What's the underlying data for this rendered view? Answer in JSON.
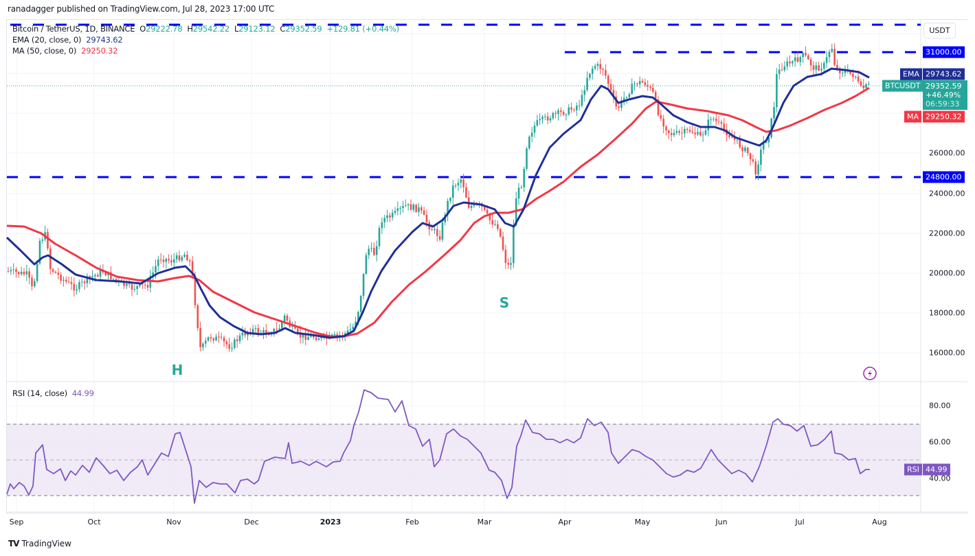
{
  "header": {
    "published": "ranadagger published on TradingView.com, Jul 28, 2023 17:00 UTC"
  },
  "legend": {
    "symbol": "Bitcoin / TetherUS, 1D, BINANCE",
    "open_label": "O",
    "open": "29222.78",
    "high_label": "H",
    "high": "29542.22",
    "low_label": "L",
    "low": "29123.12",
    "close_label": "C",
    "close": "29352.59",
    "change": "+129.81 (+0.44%)",
    "ema_label": "EMA (20, close, 0)",
    "ema_value": "29743.62",
    "ma_label": "MA (50, close, 0)",
    "ma_value": "29250.32",
    "rsi_label": "RSI (14, close)",
    "rsi_value": "44.99"
  },
  "price_axis": {
    "unit": "USDT",
    "ticks": [
      "16000.00",
      "18000.00",
      "20000.00",
      "22000.00",
      "24000.00",
      "26000.00"
    ],
    "tags": {
      "resistance_high": "31000.00",
      "support": "24800.00",
      "ema_name": "EMA",
      "ema_value": "29743.62",
      "symbol_name": "BTCUSDT",
      "last_price": "29352.59",
      "change_pct": "+46.49%",
      "countdown": "06:59:33",
      "ma_name": "MA",
      "ma_value": "29250.32"
    }
  },
  "rsi_axis": {
    "ticks": [
      "80.00",
      "60.00",
      "40.00"
    ],
    "tag_name": "RSI",
    "tag_value": "44.99"
  },
  "time_axis": {
    "months": [
      "Sep",
      "Oct",
      "Nov",
      "Dec",
      "2023",
      "Feb",
      "Mar",
      "Apr",
      "May",
      "Jun",
      "Jul",
      "Aug"
    ]
  },
  "annotations": {
    "left_shoulder_label": "H",
    "right_shoulder_label": "S"
  },
  "footer": {
    "brand": "TradingView",
    "logo": "TV"
  },
  "colors": {
    "up": "#26a69a",
    "down": "#ef5350",
    "ema": "#1e2f97",
    "ma": "#f23645",
    "level_line": "#0000ff",
    "rsi": "#7e57c2",
    "rsi_band": "#ede7f6"
  },
  "chart_data": [
    {
      "type": "line",
      "title": "Bitcoin / TetherUS, 1D, BINANCE",
      "xlabel": "",
      "ylabel": "USDT",
      "ylim": [
        15000,
        33000
      ],
      "grid": true,
      "x": [
        "Sep",
        "Oct",
        "Nov",
        "Dec",
        "2023",
        "Feb",
        "Mar",
        "Apr",
        "May",
        "Jun",
        "Jul",
        "Aug"
      ],
      "series": [
        {
          "name": "BTCUSDT close (approx, monthly start)",
          "values": [
            20000,
            19400,
            20500,
            17000,
            16600,
            23100,
            23600,
            28400,
            29200,
            27100,
            30500,
            29352.59
          ]
        },
        {
          "name": "EMA (20, close, 0)",
          "values": [
            21700,
            19500,
            20000,
            17300,
            16700,
            21000,
            23500,
            26500,
            28900,
            27000,
            29700,
            29743.62
          ]
        },
        {
          "name": "MA (50, close, 0)",
          "values": [
            22600,
            21100,
            19700,
            18500,
            16750,
            19200,
            22900,
            25000,
            28500,
            27600,
            28000,
            29250.32
          ]
        }
      ],
      "horizontal_levels": [
        32000,
        31000,
        24800
      ],
      "annotations": [
        {
          "text": "H",
          "x": "Nov"
        },
        {
          "text": "S",
          "x": "Mar"
        }
      ],
      "last": {
        "open": 29222.78,
        "high": 29542.22,
        "low": 29123.12,
        "close": 29352.59,
        "change": 129.81,
        "change_pct": 0.44
      }
    },
    {
      "type": "line",
      "title": "RSI (14, close)",
      "ylim": [
        20,
        95
      ],
      "bands": {
        "upper": 70,
        "middle": 50,
        "lower": 30
      },
      "x": [
        "Sep",
        "Oct",
        "Nov",
        "Dec",
        "2023",
        "Feb",
        "Mar",
        "Apr",
        "May",
        "Jun",
        "Jul",
        "Aug"
      ],
      "series": [
        {
          "name": "RSI",
          "values": [
            36,
            50,
            60,
            44,
            50,
            72,
            42,
            66,
            49,
            40,
            68,
            44.99
          ]
        }
      ]
    }
  ]
}
